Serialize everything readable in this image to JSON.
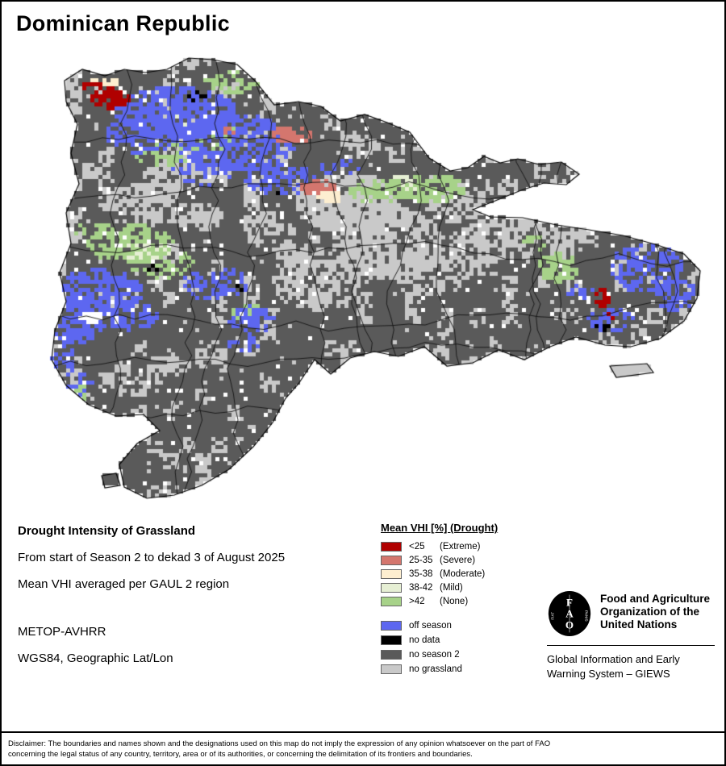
{
  "page": {
    "title": "Dominican Republic"
  },
  "product": {
    "heading": "Drought Intensity of Grassland",
    "period": "From start of Season 2 to dekad 3 of August 2025",
    "method": "Mean VHI averaged per GAUL 2 region",
    "sensor": "METOP-AVHRR",
    "projection": "WGS84, Geographic Lat/Lon"
  },
  "legend": {
    "title": "Mean VHI [%] (Drought)",
    "classes": [
      {
        "value": "<25",
        "label": "(Extreme)",
        "color": "#b00000"
      },
      {
        "value": "25-35",
        "label": "(Severe)",
        "color": "#d4766e"
      },
      {
        "value": "35-38",
        "label": "(Moderate)",
        "color": "#fdeed0"
      },
      {
        "value": "38-42",
        "label": "(Mild)",
        "color": "#e6efd4"
      },
      {
        "value": ">42",
        "label": "(None)",
        "color": "#a7d289"
      }
    ],
    "other": [
      {
        "label": "off season",
        "color": "#5d67f0"
      },
      {
        "label": "no data",
        "color": "#000000"
      },
      {
        "label": "no season 2",
        "color": "#5a5a5a"
      },
      {
        "label": "no grassland",
        "color": "#c9c9c9"
      }
    ]
  },
  "footer": {
    "logo_letters": [
      "F",
      "A",
      "O"
    ],
    "motto": [
      "FIAT",
      "PANIS"
    ],
    "org_lines": [
      "Food and Agriculture",
      "Organization of the",
      "United Nations"
    ],
    "giews_lines": [
      "Global Information and Early",
      "Warning System – GIEWS"
    ]
  },
  "disclaimer_lines": [
    "Disclaimer: The boundaries and names shown and the designations used on this map do not imply the expression of any opinion whatsoever on the part of FAO",
    "concerning the legal status of any country, territory, area or of its authorities, or concerning the delimitation of its frontiers and boundaries."
  ]
}
